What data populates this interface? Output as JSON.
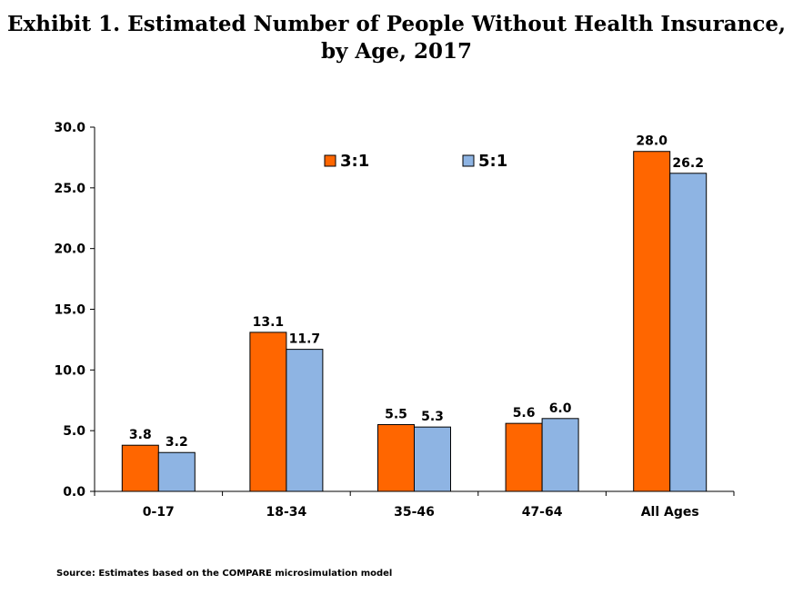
{
  "title": {
    "line1": "Exhibit 1. Estimated Number of People Without Health Insurance,",
    "line2": "by Age, 2017"
  },
  "source": "Source: Estimates based on the COMPARE microsimulation model",
  "chart_data": {
    "type": "bar",
    "title": "Exhibit 1. Estimated Number of People Without Health Insurance, by Age, 2017",
    "categories": [
      "0-17",
      "18-34",
      "35-46",
      "47-64",
      "All Ages"
    ],
    "series": [
      {
        "name": "3:1",
        "color": "#FF6600",
        "values": [
          3.8,
          13.1,
          5.5,
          5.6,
          28.0
        ],
        "labels": [
          "3.8",
          "13.1",
          "5.5",
          "5.6",
          "28.0"
        ]
      },
      {
        "name": "5:1",
        "color": "#8EB4E3",
        "values": [
          3.2,
          11.7,
          5.3,
          6.0,
          26.2
        ],
        "labels": [
          "3.2",
          "11.7",
          "5.3",
          "6.0",
          "26.2"
        ]
      }
    ],
    "yticks": [
      "0.0",
      "5.0",
      "10.0",
      "15.0",
      "20.0",
      "25.0",
      "30.0"
    ],
    "ylim": [
      0,
      30
    ],
    "xlabel": "",
    "ylabel": "",
    "legend_position": "top"
  }
}
